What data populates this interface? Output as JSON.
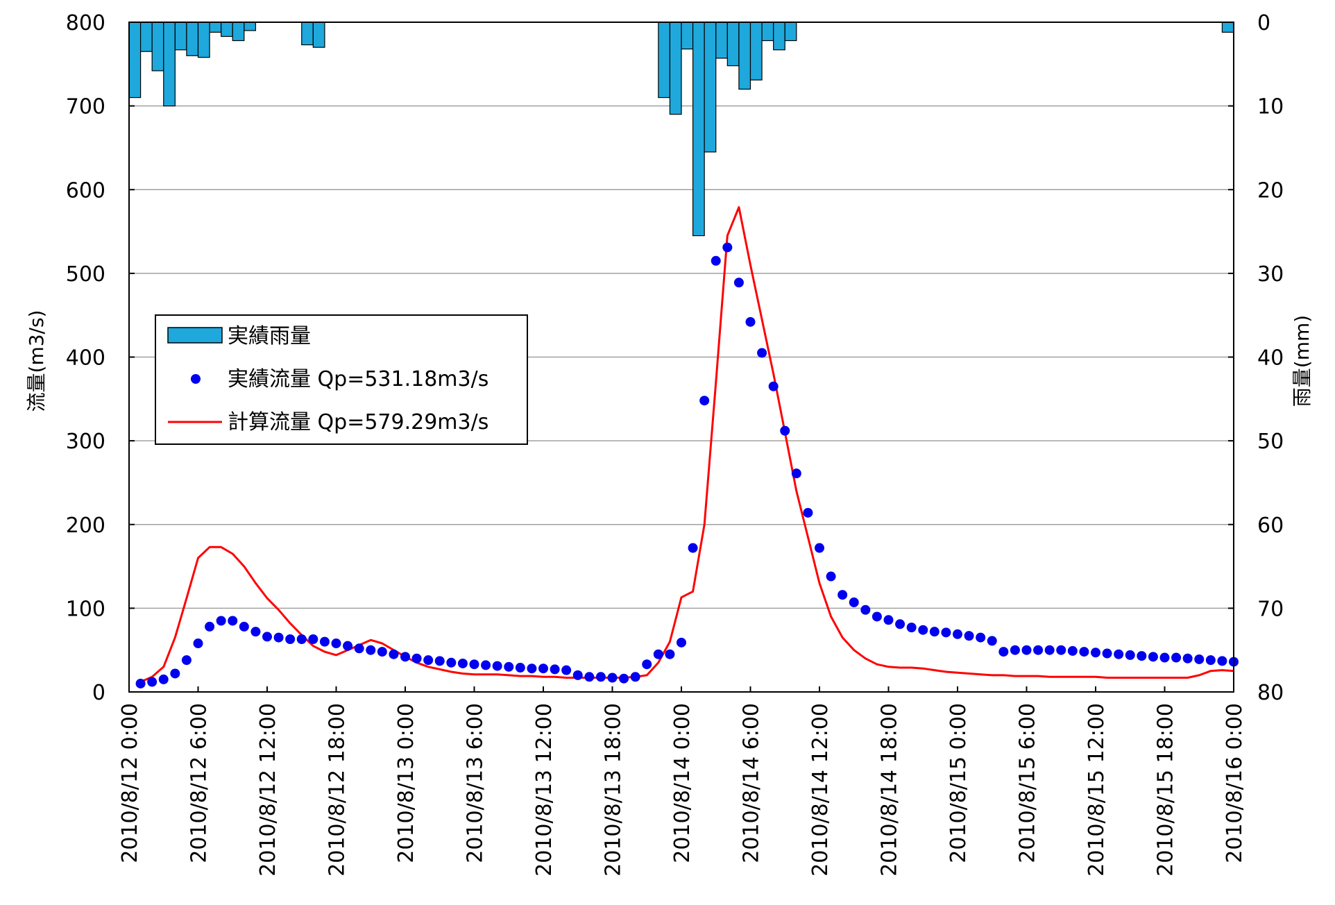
{
  "chart_data": {
    "type": "combo",
    "title": "",
    "x_axis": {
      "type": "datetime",
      "range": [
        "2010/8/12 0:00",
        "2010/8/16 0:00"
      ],
      "tick_labels": [
        "2010/8/12 0:00",
        "2010/8/12 6:00",
        "2010/8/12 12:00",
        "2010/8/12 18:00",
        "2010/8/13 0:00",
        "2010/8/13 6:00",
        "2010/8/13 12:00",
        "2010/8/13 18:00",
        "2010/8/14 0:00",
        "2010/8/14 6:00",
        "2010/8/14 12:00",
        "2010/8/14 18:00",
        "2010/8/15 0:00",
        "2010/8/15 6:00",
        "2010/8/15 12:00",
        "2010/8/15 18:00",
        "2010/8/16 0:00"
      ]
    },
    "y_left": {
      "label": "流量(m3/s)",
      "range": [
        0,
        800
      ],
      "ticks": [
        0,
        100,
        200,
        300,
        400,
        500,
        600,
        700,
        800
      ]
    },
    "y_right": {
      "label": "雨量(mm)",
      "range": [
        0,
        80
      ],
      "inverted": true,
      "ticks": [
        0,
        10,
        20,
        30,
        40,
        50,
        60,
        70,
        80
      ]
    },
    "grid": {
      "horizontal": true,
      "vertical": false
    },
    "legend": {
      "placement": "left-middle",
      "entries": [
        "実績雨量",
        "実績流量 Qp=531.18m3/s",
        "計算流量 Qp=579.29m3/s"
      ]
    },
    "colors": {
      "rain": "#1fa8dc",
      "observed": "#0000ee",
      "computed": "#ff0000",
      "grid": "#a0a0a0"
    },
    "rain_series": {
      "name": "実績雨量",
      "type": "bar",
      "axis": "right",
      "x": [
        "2010/8/12 1:00",
        "2010/8/12 2:00",
        "2010/8/12 3:00",
        "2010/8/12 4:00",
        "2010/8/12 5:00",
        "2010/8/12 6:00",
        "2010/8/12 7:00",
        "2010/8/12 8:00",
        "2010/8/12 9:00",
        "2010/8/12 10:00",
        "2010/8/12 11:00",
        "2010/8/12 16:00",
        "2010/8/12 17:00",
        "2010/8/13 23:00",
        "2010/8/14 0:00",
        "2010/8/14 1:00",
        "2010/8/14 2:00",
        "2010/8/14 3:00",
        "2010/8/14 4:00",
        "2010/8/14 5:00",
        "2010/8/14 6:00",
        "2010/8/14 7:00",
        "2010/8/14 8:00",
        "2010/8/14 9:00",
        "2010/8/14 10:00",
        "2010/8/14 11:00",
        "2010/8/14 12:00",
        "2010/8/16 0:00"
      ],
      "values": [
        9,
        3.5,
        5.8,
        10,
        3.3,
        4,
        4.2,
        1.2,
        1.7,
        2.2,
        1,
        2.7,
        3,
        9,
        11,
        3.2,
        25.5,
        15.5,
        4.3,
        5.2,
        8,
        6.9,
        2.2,
        3.3,
        2.2,
        0,
        0,
        1.2
      ]
    },
    "observed_series": {
      "name": "実績流量 Qp=531.18m3/s",
      "type": "scatter",
      "axis": "left",
      "start": "2010/8/12 1:00",
      "interval_hours": 1,
      "values": [
        10,
        12,
        15,
        22,
        38,
        58,
        78,
        85,
        85,
        78,
        72,
        66,
        65,
        63,
        63,
        63,
        60,
        58,
        55,
        52,
        50,
        48,
        45,
        42,
        40,
        38,
        37,
        35,
        34,
        33,
        32,
        31,
        30,
        29,
        28,
        28,
        27,
        26,
        20,
        18,
        18,
        17,
        16,
        18,
        33,
        45,
        45,
        59,
        172,
        348,
        515,
        531,
        489,
        442,
        405,
        365,
        312,
        261,
        214,
        172,
        138,
        116,
        107,
        98,
        90,
        86,
        81,
        77,
        74,
        72,
        71,
        69,
        67,
        65,
        61,
        48,
        50,
        50,
        50,
        50,
        50,
        49,
        48,
        47,
        46,
        45,
        44,
        43,
        42,
        41,
        41,
        40,
        39,
        38,
        37,
        36
      ]
    },
    "computed_series": {
      "name": "計算流量 Qp=579.29m3/s",
      "type": "line",
      "axis": "left",
      "start": "2010/8/12 1:00",
      "interval_hours": 1,
      "values": [
        12,
        18,
        30,
        65,
        112,
        160,
        173,
        173,
        165,
        150,
        130,
        112,
        98,
        82,
        68,
        55,
        48,
        44,
        50,
        56,
        62,
        58,
        50,
        42,
        35,
        30,
        27,
        24,
        22,
        21,
        21,
        21,
        20,
        19,
        19,
        18,
        18,
        17,
        17,
        17,
        17,
        17,
        17,
        18,
        20,
        35,
        60,
        113,
        120,
        200,
        370,
        545,
        579,
        510,
        445,
        380,
        310,
        240,
        185,
        130,
        90,
        65,
        50,
        40,
        33,
        30,
        29,
        29,
        28,
        26,
        24,
        23,
        22,
        21,
        20,
        20,
        19,
        19,
        19,
        18,
        18,
        18,
        18,
        18,
        17,
        17,
        17,
        17,
        17,
        17,
        17,
        17,
        20,
        25,
        26,
        25
      ]
    }
  }
}
